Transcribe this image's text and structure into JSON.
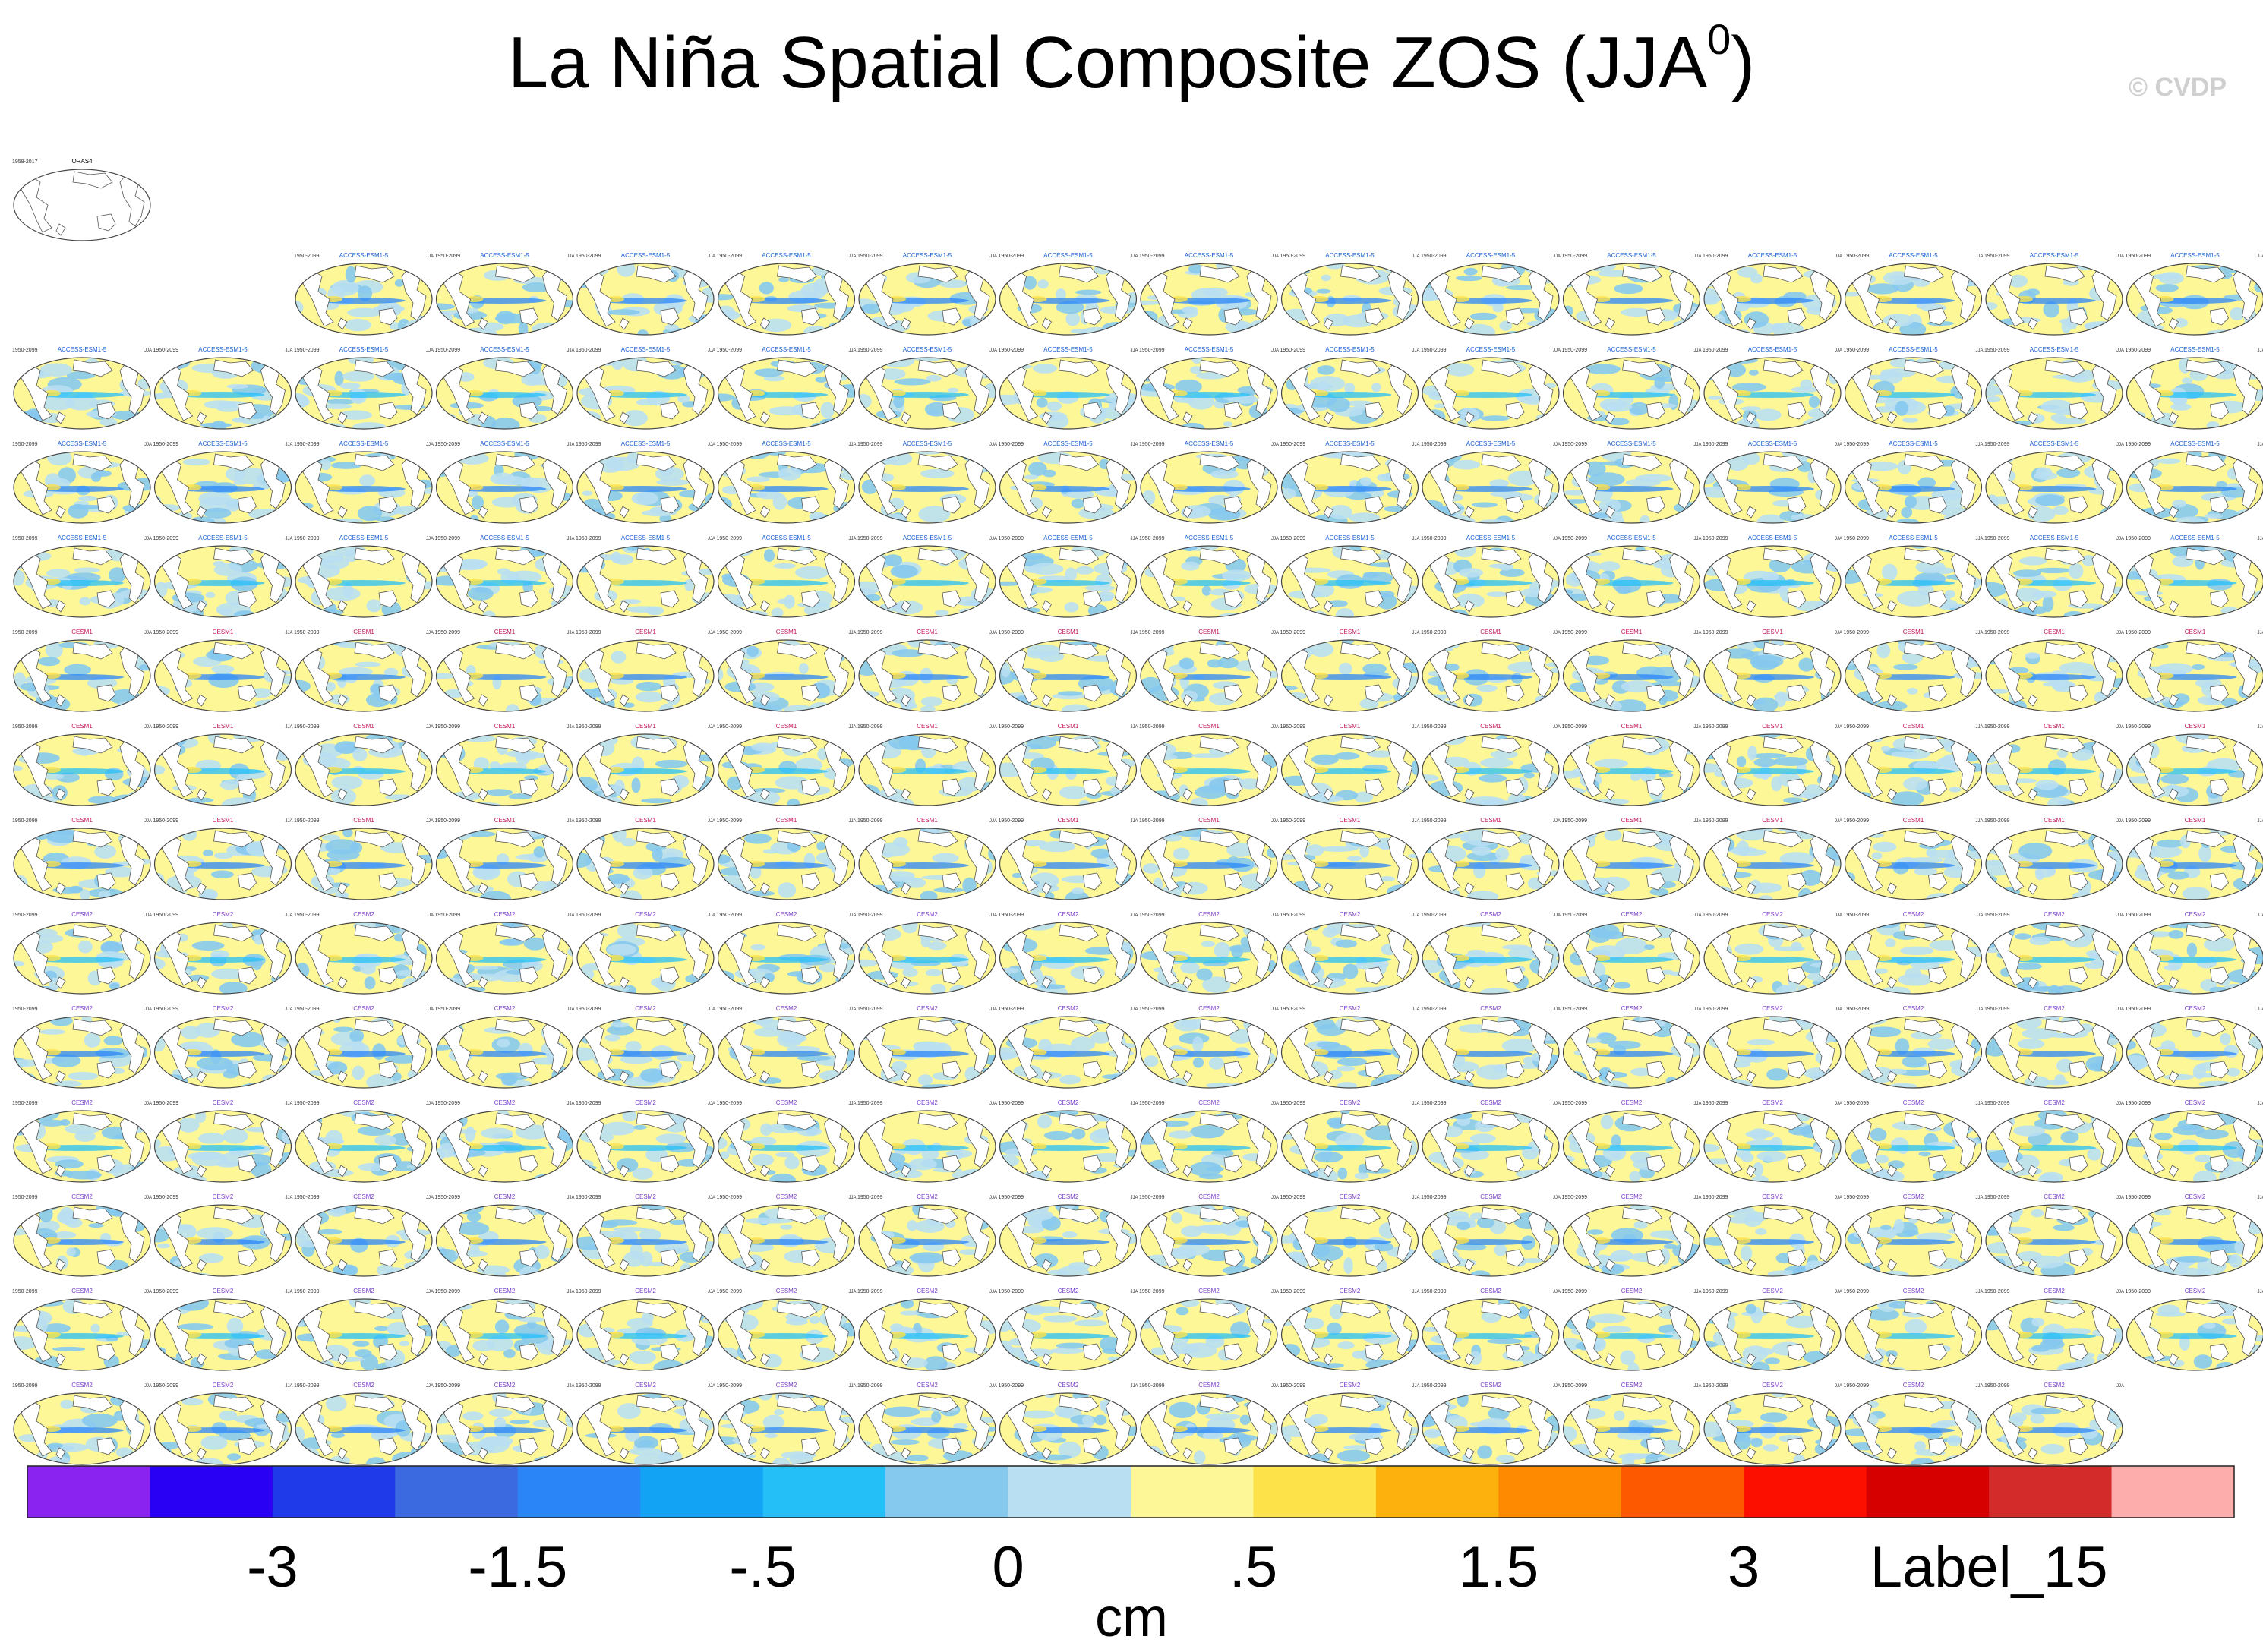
{
  "title": {
    "main": "La Niña Spatial Composite ZOS (JJA",
    "superscript": "0",
    "close": ")"
  },
  "copyright": "© CVDP",
  "chart_data": {
    "type": "heatmap",
    "description_text": "",
    "panels": {
      "reference": {
        "label": "ORAS4",
        "years": "1958-2017",
        "filled": false
      },
      "row_models": [
        "",
        "ACCESS-ESM1-5",
        "ACCESS-ESM1-5",
        "ACCESS-ESM1-5",
        "ACCESS-ESM1-5",
        "CESM1",
        "CESM1",
        "CESM1",
        "CESM2",
        "CESM2",
        "CESM2",
        "CESM2",
        "CESM2",
        "CESM2"
      ],
      "panels_per_row": [
        1,
        14,
        16,
        16,
        16,
        16,
        16,
        16,
        16,
        16,
        16,
        16,
        16,
        15
      ],
      "row_blank_left": [
        0,
        2,
        0,
        0,
        0,
        0,
        0,
        0,
        0,
        0,
        0,
        0,
        0,
        0
      ],
      "years": "1950-2099",
      "month_tag": "JJA"
    },
    "colorbar": {
      "colors": [
        "#8a22f0",
        "#2a00f5",
        "#1f3ae8",
        "#3b6ae0",
        "#2a86f7",
        "#12a3f5",
        "#25bff7",
        "#86c9ee",
        "#b9dff2",
        "#fdf797",
        "#fde24a",
        "#fdb10c",
        "#fd8a00",
        "#fd5900",
        "#fd0f00",
        "#d60000",
        "#d32a2a",
        "#feadad"
      ],
      "tick_labels": [
        {
          "label": "-3",
          "boundary": 2
        },
        {
          "label": "-1.5",
          "boundary": 4
        },
        {
          "label": "-.5",
          "boundary": 6
        },
        {
          "label": "0",
          "boundary": 8
        },
        {
          "label": ".5",
          "boundary": 10
        },
        {
          "label": "1.5",
          "boundary": 12
        },
        {
          "label": "3",
          "boundary": 14
        },
        {
          "label": "Label_15",
          "boundary": 16
        }
      ],
      "unit": "cm"
    }
  }
}
